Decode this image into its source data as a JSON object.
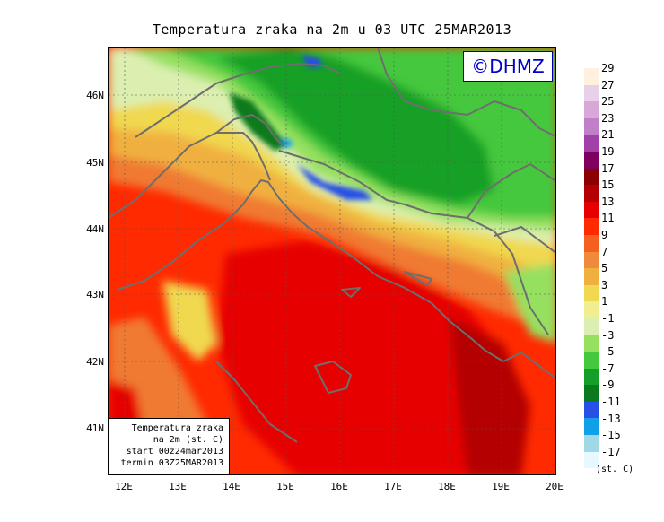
{
  "title": "Temperatura zraka na 2m u 03 UTC 25MAR2013",
  "copyright": "©DHMZ",
  "info_box": {
    "line1": "Temperatura zraka",
    "line2": "na 2m (st. C)",
    "line3": "start 00z24mar2013",
    "line4": "termin 03Z25MAR2013"
  },
  "lat_ticks": [
    "46N",
    "45N",
    "44N",
    "43N",
    "42N",
    "41N"
  ],
  "lon_ticks": [
    "12E",
    "13E",
    "14E",
    "15E",
    "16E",
    "17E",
    "18E",
    "19E",
    "20E"
  ],
  "legend": {
    "unit": "(st. C)",
    "labels": [
      "29",
      "27",
      "25",
      "23",
      "21",
      "19",
      "17",
      "15",
      "13",
      "11",
      "9",
      "7",
      "5",
      "3",
      "1",
      "-1",
      "-3",
      "-5",
      "-7",
      "-9",
      "-11",
      "-13",
      "-15",
      "-17"
    ],
    "colors": [
      "#fff0e0",
      "#e8d0e8",
      "#d8a8d8",
      "#c080c8",
      "#a040a8",
      "#800060",
      "#8b0000",
      "#b40000",
      "#e60000",
      "#ff2a00",
      "#f5601e",
      "#ef8a3c",
      "#f0b040",
      "#f0d850",
      "#f0ee90",
      "#dcefb0",
      "#96e060",
      "#44c83c",
      "#14a028",
      "#0a7a1e",
      "#2850e6",
      "#10a0e8",
      "#a0d8e8",
      "#e8f8ff"
    ]
  }
}
